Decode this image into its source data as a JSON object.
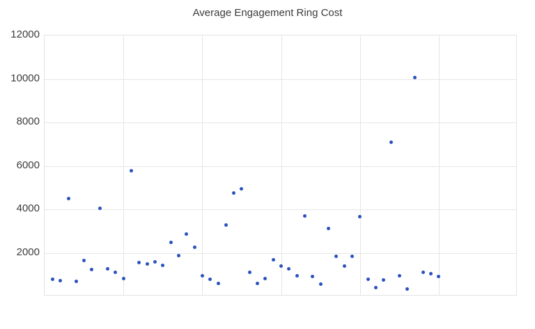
{
  "title": "Average Engagement Ring Cost",
  "colors": {
    "dot": "#2a52be",
    "grid": "#e6e6e6",
    "plot_border": "#e3e3e3",
    "axis_text": "#3b3b3b",
    "title_text": "#3b3b3b",
    "background": "#ffffff"
  },
  "chart_data": {
    "type": "scatter",
    "title": "Average Engagement Ring Cost",
    "xlabel": "",
    "ylabel": "",
    "xlim": [
      0,
      60
    ],
    "ylim": [
      0,
      12000
    ],
    "y_ticks": [
      2000,
      4000,
      6000,
      8000,
      10000,
      12000
    ],
    "x_gridlines": [
      0,
      10,
      20,
      30,
      40,
      50,
      60
    ],
    "grid": true,
    "legend_position": "none",
    "series": [
      {
        "name": "Average cost ($)",
        "x": [
          1,
          2,
          3,
          4,
          5,
          6,
          7,
          8,
          9,
          10,
          11,
          12,
          13,
          14,
          15,
          16,
          17,
          18,
          19,
          20,
          21,
          22,
          23,
          24,
          25,
          26,
          27,
          28,
          29,
          30,
          31,
          32,
          33,
          34,
          35,
          36,
          37,
          38,
          39,
          40,
          41,
          42,
          43,
          44,
          45,
          46,
          47,
          48,
          49,
          50
        ],
        "y": [
          800,
          730,
          4500,
          690,
          1650,
          1230,
          4050,
          1280,
          1120,
          820,
          5780,
          1550,
          1500,
          1580,
          1410,
          2490,
          1870,
          2850,
          2270,
          960,
          770,
          590,
          3290,
          4760,
          4930,
          1090,
          590,
          830,
          1690,
          1380,
          1250,
          950,
          3700,
          910,
          560,
          3110,
          1830,
          1390,
          1830,
          3650,
          800,
          400,
          760,
          7100,
          950,
          350,
          10050,
          1120,
          1050,
          910
        ]
      }
    ]
  }
}
